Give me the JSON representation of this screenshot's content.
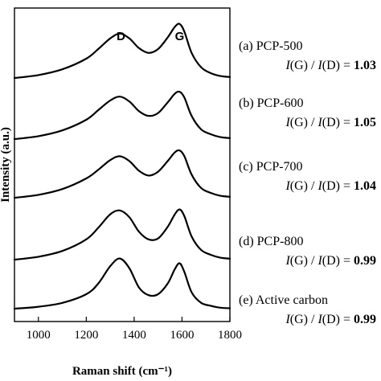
{
  "chart_data": {
    "type": "line",
    "xlabel": "Raman shift (cm⁻¹)",
    "ylabel": "Intensity (a.u.)",
    "xlim": [
      900,
      1800
    ],
    "x_ticks": [
      "1000",
      "1200",
      "1400",
      "1600",
      "1800"
    ],
    "x_tick_values": [
      1000,
      1200,
      1400,
      1600,
      1800
    ],
    "y_ticks": false,
    "peak_labels": [
      {
        "text": "D",
        "x": 1345
      },
      {
        "text": "G",
        "x": 1590
      }
    ],
    "series": [
      {
        "sample": "(a) PCP-500",
        "ratio_prefix": "I(G) / I(D) = ",
        "ratio": "1.03",
        "baseline": 0.0,
        "x": [
          900,
          1000,
          1100,
          1200,
          1250,
          1300,
          1340,
          1380,
          1420,
          1460,
          1500,
          1540,
          1570,
          1590,
          1610,
          1640,
          1680,
          1720,
          1760,
          1800
        ],
        "y": [
          0.0,
          0.15,
          0.45,
          1.0,
          1.5,
          2.05,
          2.3,
          2.05,
          1.55,
          1.3,
          1.5,
          2.1,
          2.65,
          2.8,
          2.4,
          1.3,
          0.55,
          0.25,
          0.1,
          0.05
        ]
      },
      {
        "sample": "(b) PCP-600",
        "ratio_prefix": "I(G) / I(D) = ",
        "ratio": "1.05",
        "baseline": 0.0,
        "x": [
          900,
          1000,
          1100,
          1200,
          1250,
          1300,
          1340,
          1380,
          1420,
          1460,
          1500,
          1540,
          1570,
          1590,
          1610,
          1640,
          1680,
          1720,
          1760,
          1800
        ],
        "y": [
          0.0,
          0.15,
          0.45,
          1.0,
          1.5,
          2.0,
          2.2,
          1.95,
          1.45,
          1.2,
          1.35,
          1.9,
          2.35,
          2.45,
          2.15,
          1.2,
          0.5,
          0.25,
          0.1,
          0.05
        ]
      },
      {
        "sample": "(c) PCP-700",
        "ratio_prefix": "I(G) / I(D) = ",
        "ratio": "1.04",
        "baseline": 0.0,
        "x": [
          900,
          1000,
          1100,
          1200,
          1250,
          1300,
          1340,
          1380,
          1420,
          1460,
          1500,
          1540,
          1570,
          1590,
          1610,
          1640,
          1680,
          1720,
          1760,
          1800
        ],
        "y": [
          0.0,
          0.15,
          0.45,
          1.0,
          1.45,
          1.95,
          2.15,
          1.9,
          1.4,
          1.15,
          1.35,
          1.9,
          2.35,
          2.45,
          2.15,
          1.2,
          0.5,
          0.25,
          0.1,
          0.05
        ]
      },
      {
        "sample": "(d) PCP-800",
        "ratio_prefix": "I(G) / I(D) = ",
        "ratio": "0.99",
        "baseline": 0.0,
        "x": [
          900,
          1000,
          1100,
          1200,
          1250,
          1300,
          1340,
          1380,
          1420,
          1460,
          1500,
          1540,
          1570,
          1590,
          1610,
          1640,
          1680,
          1720,
          1760,
          1800
        ],
        "y": [
          0.0,
          0.15,
          0.45,
          1.05,
          1.65,
          2.35,
          2.55,
          2.2,
          1.45,
          1.05,
          1.1,
          1.7,
          2.35,
          2.6,
          2.25,
          1.2,
          0.5,
          0.25,
          0.1,
          0.05
        ]
      },
      {
        "sample": "(e) Active carbon",
        "ratio_prefix": "I(G) / I(D) = ",
        "ratio": "0.99",
        "baseline": 0.0,
        "x": [
          900,
          1000,
          1100,
          1200,
          1250,
          1300,
          1340,
          1380,
          1420,
          1460,
          1500,
          1540,
          1570,
          1590,
          1610,
          1640,
          1680,
          1720,
          1760,
          1800
        ],
        "y": [
          0.0,
          0.1,
          0.3,
          0.75,
          1.3,
          2.2,
          2.6,
          2.1,
          1.1,
          0.7,
          0.75,
          1.3,
          2.05,
          2.35,
          1.9,
          0.85,
          0.3,
          0.15,
          0.05,
          0.02
        ]
      }
    ]
  }
}
